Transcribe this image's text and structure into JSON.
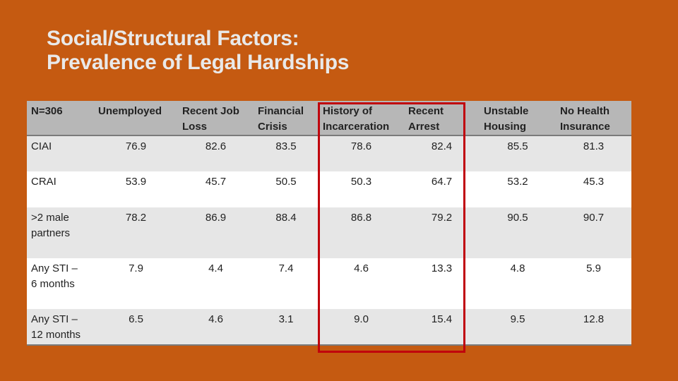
{
  "title": {
    "line1": "Social/Structural Factors:",
    "line2": "Prevalence of Legal Hardships"
  },
  "table": {
    "headers": [
      {
        "line1": "N=306",
        "line2": ""
      },
      {
        "line1": "Unemployed",
        "line2": ""
      },
      {
        "line1": "Recent Job",
        "line2": "Loss"
      },
      {
        "line1": "Financial",
        "line2": "Crisis"
      },
      {
        "line1": "History of",
        "line2": "Incarceration"
      },
      {
        "line1": "Recent",
        "line2": "Arrest"
      },
      {
        "line1": "Unstable",
        "line2": "Housing"
      },
      {
        "line1": "No Health",
        "line2": "Insurance"
      }
    ],
    "rows": [
      {
        "label1": "CIAI",
        "label2": "",
        "values": [
          "76.9",
          "82.6",
          "83.5",
          "78.6",
          "82.4",
          "85.5",
          "81.3"
        ]
      },
      {
        "label1": "CRAI",
        "label2": "",
        "values": [
          "53.9",
          "45.7",
          "50.5",
          "50.3",
          "64.7",
          "53.2",
          "45.3"
        ]
      },
      {
        "label1": ">2 male",
        "label2": "partners",
        "values": [
          "78.2",
          "86.9",
          "88.4",
          "86.8",
          "79.2",
          "90.5",
          "90.7"
        ]
      },
      {
        "label1": "Any STI –",
        "label2": "6 months",
        "values": [
          "7.9",
          "4.4",
          "7.4",
          "4.6",
          "13.3",
          "4.8",
          "5.9"
        ]
      },
      {
        "label1": "Any STI –",
        "label2": "12 months",
        "values": [
          "6.5",
          "4.6",
          "3.1",
          "9.0",
          "15.4",
          "9.5",
          "12.8"
        ]
      }
    ]
  },
  "colors": {
    "background": "#c55a11",
    "header": "#b7b7b7",
    "highlight": "#c0000c"
  }
}
